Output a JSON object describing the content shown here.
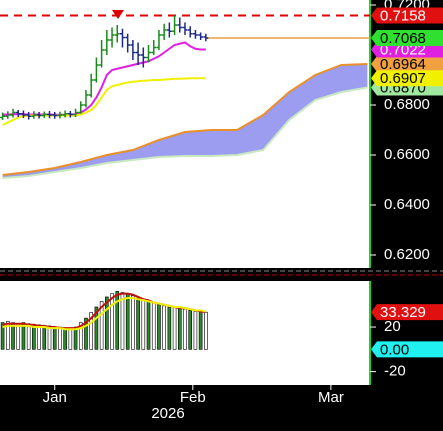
{
  "chart_data": [
    {
      "type": "candlestick",
      "xlim": [
        -0.5,
        70.5
      ],
      "ylim": [
        0.6148,
        0.722
      ],
      "yticks": [
        {
          "value": 0.72,
          "label": "0.7200"
        },
        {
          "value": 0.68,
          "label": "0.6800"
        },
        {
          "value": 0.66,
          "label": "0.6600"
        },
        {
          "value": 0.64,
          "label": "0.6400"
        },
        {
          "value": 0.62,
          "label": "0.6200"
        }
      ],
      "up_color": "#1a8a1a",
      "down_color": "#1a2a8a",
      "open": [
        0.675,
        0.6755,
        0.676,
        0.677,
        0.6765,
        0.676,
        0.6755,
        0.676,
        0.6758,
        0.6762,
        0.676,
        0.6758,
        0.676,
        0.6765,
        0.6762,
        0.677,
        0.68,
        0.684,
        0.69,
        0.696,
        0.702,
        0.706,
        0.708,
        0.7085,
        0.707,
        0.704,
        0.701,
        0.7,
        0.699,
        0.701,
        0.703,
        0.708,
        0.71,
        0.7095,
        0.712,
        0.711,
        0.71,
        0.7085,
        0.708,
        0.7072
      ],
      "high": [
        0.677,
        0.6775,
        0.6785,
        0.678,
        0.6778,
        0.6772,
        0.6775,
        0.6772,
        0.6774,
        0.6776,
        0.6772,
        0.6773,
        0.6778,
        0.6776,
        0.6785,
        0.6815,
        0.686,
        0.6925,
        0.699,
        0.706,
        0.71,
        0.711,
        0.712,
        0.7105,
        0.7085,
        0.706,
        0.705,
        0.703,
        0.704,
        0.706,
        0.71,
        0.7125,
        0.713,
        0.7158,
        0.715,
        0.713,
        0.7115,
        0.71,
        0.709,
        0.7085
      ],
      "low": [
        0.674,
        0.6745,
        0.675,
        0.6752,
        0.6748,
        0.6742,
        0.6745,
        0.6746,
        0.6748,
        0.6747,
        0.6745,
        0.6746,
        0.675,
        0.675,
        0.6752,
        0.6765,
        0.679,
        0.683,
        0.689,
        0.695,
        0.7,
        0.703,
        0.705,
        0.703,
        0.701,
        0.698,
        0.696,
        0.695,
        0.697,
        0.7,
        0.702,
        0.706,
        0.707,
        0.708,
        0.709,
        0.708,
        0.707,
        0.7065,
        0.706,
        0.7055
      ],
      "close": [
        0.6755,
        0.676,
        0.677,
        0.6765,
        0.676,
        0.6755,
        0.676,
        0.6758,
        0.6762,
        0.676,
        0.6758,
        0.676,
        0.6765,
        0.6762,
        0.677,
        0.68,
        0.684,
        0.69,
        0.696,
        0.702,
        0.706,
        0.708,
        0.7085,
        0.707,
        0.704,
        0.701,
        0.7,
        0.699,
        0.701,
        0.703,
        0.708,
        0.71,
        0.7095,
        0.712,
        0.711,
        0.71,
        0.7085,
        0.708,
        0.7072,
        0.7068
      ],
      "cloud": {
        "x": [
          0,
          5,
          10,
          15,
          20,
          25,
          30,
          35,
          40,
          45,
          50,
          55,
          60,
          65,
          70
        ],
        "span_a": [
          0.652,
          0.6532,
          0.6548,
          0.6572,
          0.66,
          0.662,
          0.666,
          0.6692,
          0.67,
          0.67,
          0.676,
          0.6852,
          0.692,
          0.696,
          0.6964
        ],
        "span_b": [
          0.6508,
          0.6516,
          0.6532,
          0.6548,
          0.6568,
          0.658,
          0.6592,
          0.6596,
          0.6596,
          0.66,
          0.662,
          0.674,
          0.682,
          0.6852,
          0.687
        ],
        "fill": "#9c9cf0",
        "color_a": "#e8902a",
        "color_b": "#c8e8c0"
      },
      "lines": [
        {
          "color": "#e020e0",
          "values": [
            0.6762,
            0.6762,
            0.6763,
            0.6763,
            0.6763,
            0.6762,
            0.6762,
            0.6762,
            0.6762,
            0.6762,
            0.6761,
            0.6761,
            0.6761,
            0.6762,
            0.6763,
            0.677,
            0.6782,
            0.68,
            0.683,
            0.687,
            0.692,
            0.694,
            0.6945,
            0.695,
            0.6955,
            0.696,
            0.6965,
            0.697,
            0.6975,
            0.6985,
            0.6995,
            0.701,
            0.7025,
            0.704,
            0.7045,
            0.705,
            0.7035,
            0.7025,
            0.7022,
            0.7022
          ]
        },
        {
          "color": "#f0f000",
          "values": [
            0.672,
            0.673,
            0.674,
            0.675,
            0.6755,
            0.6758,
            0.6758,
            0.6758,
            0.6758,
            0.6758,
            0.6758,
            0.6758,
            0.6758,
            0.6758,
            0.6758,
            0.6762,
            0.677,
            0.678,
            0.68,
            0.683,
            0.686,
            0.6875,
            0.688,
            0.6885,
            0.689,
            0.6893,
            0.6895,
            0.6897,
            0.6898,
            0.69,
            0.69,
            0.6902,
            0.6903,
            0.6905,
            0.6905,
            0.6906,
            0.6907,
            0.6907,
            0.6907,
            0.6907
          ]
        }
      ],
      "hlines": [
        {
          "value": 0.7158,
          "color": "#e00000",
          "dashed": true,
          "from": -0.5
        },
        {
          "value": 0.7068,
          "color": "#e8a040",
          "dashed": false,
          "from": 39
        }
      ],
      "tags": [
        {
          "value": 0.687,
          "label": "0.6870",
          "color": "#a0e8a0",
          "text_color": "#000"
        },
        {
          "value": 0.6964,
          "label": "0.6964",
          "color": "#f0a040",
          "text_color": "#000"
        },
        {
          "value": 0.6907,
          "label": "0.6907",
          "color": "#f0f000",
          "text_color": "#000"
        },
        {
          "value": 0.7022,
          "label": "0.7022",
          "color": "#e020e0",
          "text_color": "#fff"
        },
        {
          "value": 0.7068,
          "label": "0.7068",
          "color": "#30e030",
          "text_color": "#000"
        },
        {
          "value": 0.7158,
          "label": "0.7158",
          "color": "#e01010",
          "text_color": "#fff"
        }
      ]
    },
    {
      "type": "bar",
      "xlim": [
        -0.5,
        70.5
      ],
      "ylim": [
        -32,
        61.3
      ],
      "yticks": [
        20,
        -20
      ],
      "xticks": [
        {
          "value": 10,
          "label": "Jan"
        },
        {
          "value": 36.5,
          "label": "Feb"
        },
        {
          "value": 63,
          "label": "Mar"
        }
      ],
      "xlabel": "2026",
      "color": "#2a8a2a",
      "values": [
        24,
        25,
        24,
        23,
        24,
        23,
        22,
        22,
        21,
        21,
        20,
        20,
        19,
        19,
        20,
        24,
        28,
        33,
        38,
        43,
        47,
        50,
        52,
        51,
        50,
        48,
        46,
        45,
        43,
        42,
        40,
        39,
        38,
        38,
        37,
        36,
        35,
        34,
        34,
        33.329
      ],
      "lines": [
        {
          "color": "#c01010",
          "values": [
            22,
            23,
            23,
            23,
            23,
            22,
            22,
            21,
            21,
            20,
            20,
            19,
            19,
            19,
            19,
            21,
            24,
            28,
            33,
            38,
            42,
            46,
            49,
            50,
            50,
            49,
            47,
            45,
            44,
            42,
            41,
            40,
            39,
            38,
            37,
            37,
            36,
            35,
            34,
            33.5
          ]
        },
        {
          "color": "#f0f000",
          "values": [
            20,
            21,
            21,
            21,
            21,
            21,
            20,
            20,
            20,
            19,
            19,
            19,
            18,
            18,
            18,
            19,
            21,
            24,
            28,
            32,
            36,
            40,
            43,
            45,
            46,
            46,
            45,
            44,
            43,
            42,
            41,
            40,
            39,
            38,
            38,
            37,
            36,
            35,
            35,
            34
          ]
        }
      ],
      "tags": [
        {
          "value": 33.329,
          "label": "33.329",
          "color": "#e01010",
          "text_color": "#fff"
        },
        {
          "value": 0,
          "label": "0.00",
          "color": "#20f0f0",
          "text_color": "#000"
        }
      ]
    }
  ]
}
